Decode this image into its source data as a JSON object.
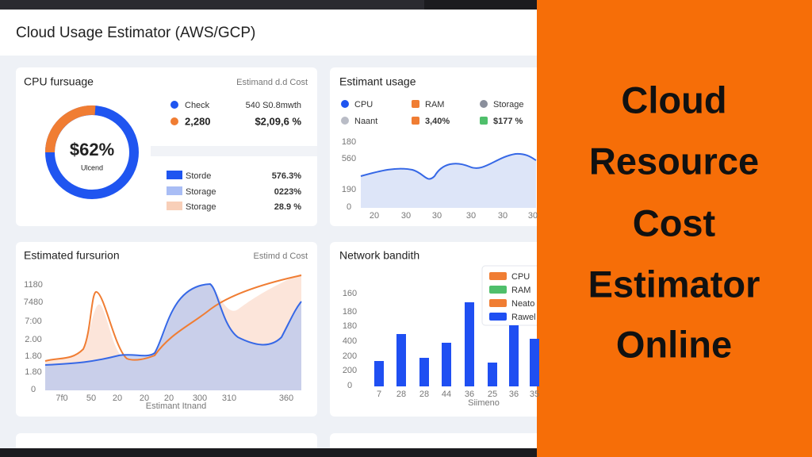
{
  "header": {
    "title": "Cloud Usage Estimator (AWS/GCP)"
  },
  "panels": [
    {
      "title": "CPU fursuage",
      "subtitle": "Estimand d.d Cost",
      "center_value": "$62%",
      "center_caption": "Ulcend",
      "legend": [
        {
          "label": "Check",
          "value": "540 S0.8mwth"
        },
        {
          "label": "2,280",
          "value": "$2,09,6 %"
        }
      ],
      "rows": [
        {
          "label": "Storde",
          "value": "576.3%"
        },
        {
          "label": "Storage",
          "value": "0223%"
        },
        {
          "label": "Storage",
          "value": "28.9 %"
        }
      ]
    },
    {
      "title": "Estimant usage",
      "legend": [
        "CPU",
        "RAM",
        "Storage",
        "Naant",
        "3,40%",
        "$177 %"
      ],
      "y_labels": [
        "180",
        "560",
        "190",
        "0"
      ],
      "x_labels": [
        "20",
        "30",
        "30",
        "30",
        "30",
        "30"
      ]
    },
    {
      "title": "Estimated fursurion",
      "subtitle": "Estimd d Cost",
      "y_labels": [
        "1180",
        "7480",
        "7:00",
        "2.00",
        "1.80",
        "1.80",
        "0"
      ],
      "x_labels": [
        "7f0",
        "50",
        "20",
        "20",
        "20",
        "300",
        "310",
        "360"
      ],
      "x_title": "Estimant Itnand"
    },
    {
      "title": "Network bandith",
      "legend": [
        "CPU",
        "RAM",
        "Neato",
        "Rawel"
      ],
      "y_labels": [
        "160",
        "180",
        "180",
        "400",
        "200",
        "200",
        "0"
      ],
      "x_labels": [
        "7",
        "28",
        "28",
        "44",
        "36",
        "25",
        "36",
        "35"
      ],
      "x_title": "Siimeno"
    }
  ],
  "banner": {
    "lines": [
      "Cloud",
      "Resource",
      "Cost",
      "Estimator",
      "Online"
    ]
  }
}
